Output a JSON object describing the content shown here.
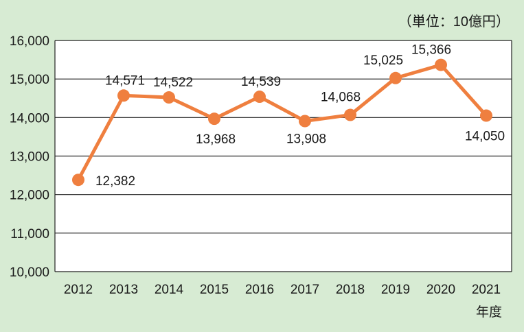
{
  "chart_data": {
    "type": "line",
    "unit_note": "（単位：10億円）",
    "xlabel": "年度",
    "ylabel": "",
    "categories": [
      "2012",
      "2013",
      "2014",
      "2015",
      "2016",
      "2017",
      "2018",
      "2019",
      "2020",
      "2021"
    ],
    "series": [
      {
        "values": [
          12382,
          14571,
          14522,
          13968,
          14539,
          13908,
          14068,
          15025,
          15366,
          14050
        ],
        "data_labels": [
          "12,382",
          "14,571",
          "14,522",
          "13,968",
          "14,539",
          "13,908",
          "14,068",
          "15,025",
          "15,366",
          "14,050"
        ],
        "color": "#ef7f3f"
      }
    ],
    "ylim": [
      10000,
      16000
    ],
    "yticks": [
      10000,
      11000,
      12000,
      13000,
      14000,
      15000,
      16000
    ],
    "ytick_labels": [
      "10,000",
      "11,000",
      "12,000",
      "13,000",
      "14,000",
      "15,000",
      "16,000"
    ],
    "grid": true,
    "colors": {
      "background": "#d7ebd3",
      "plot_background": "#ffffff",
      "line": "#ef7f3f",
      "grid": "#222222"
    }
  }
}
